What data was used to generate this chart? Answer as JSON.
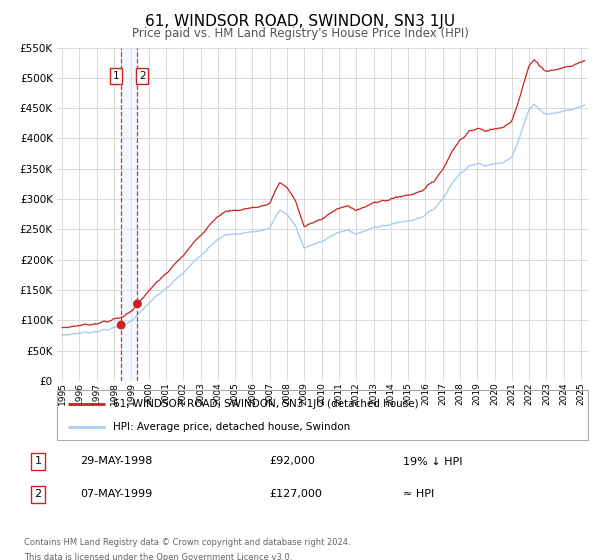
{
  "title": "61, WINDSOR ROAD, SWINDON, SN3 1JU",
  "subtitle": "Price paid vs. HM Land Registry's House Price Index (HPI)",
  "ylim": [
    0,
    550000
  ],
  "yticks": [
    0,
    50000,
    100000,
    150000,
    200000,
    250000,
    300000,
    350000,
    400000,
    450000,
    500000,
    550000
  ],
  "xlim_start": 1994.7,
  "xlim_end": 2025.4,
  "sale1_year": 1998.41,
  "sale1_price": 92000,
  "sale2_year": 1999.35,
  "sale2_price": 127000,
  "line_color_red": "#cc2222",
  "line_color_blue": "#aaccee",
  "shading_color": "#ddeeff",
  "dashed_color": "#cc2222",
  "legend_label_red": "61, WINDSOR ROAD, SWINDON, SN3 1JU (detached house)",
  "legend_label_blue": "HPI: Average price, detached house, Swindon",
  "table_row1_num": "1",
  "table_row1_date": "29-MAY-1998",
  "table_row1_price": "£92,000",
  "table_row1_hpi": "19% ↓ HPI",
  "table_row2_num": "2",
  "table_row2_date": "07-MAY-1999",
  "table_row2_price": "£127,000",
  "table_row2_hpi": "≈ HPI",
  "footnote_line1": "Contains HM Land Registry data © Crown copyright and database right 2024.",
  "footnote_line2": "This data is licensed under the Open Government Licence v3.0.",
  "background_color": "#ffffff",
  "grid_color": "#cccccc",
  "hpi_key_years": [
    1995.0,
    1995.5,
    1996.0,
    1996.5,
    1997.0,
    1997.5,
    1998.0,
    1998.5,
    1999.0,
    1999.5,
    2000.0,
    2000.5,
    2001.0,
    2001.5,
    2002.0,
    2002.5,
    2003.0,
    2003.5,
    2004.0,
    2004.5,
    2005.0,
    2005.5,
    2006.0,
    2006.5,
    2007.0,
    2007.3,
    2007.6,
    2008.0,
    2008.5,
    2009.0,
    2009.5,
    2010.0,
    2010.5,
    2011.0,
    2011.5,
    2012.0,
    2012.5,
    2013.0,
    2013.5,
    2014.0,
    2014.5,
    2015.0,
    2015.5,
    2016.0,
    2016.5,
    2017.0,
    2017.5,
    2018.0,
    2018.5,
    2019.0,
    2019.5,
    2020.0,
    2020.5,
    2021.0,
    2021.3,
    2021.6,
    2022.0,
    2022.3,
    2022.6,
    2023.0,
    2023.5,
    2024.0,
    2024.5,
    2025.2
  ],
  "hpi_key_prices": [
    75000,
    77000,
    79000,
    80000,
    82000,
    84000,
    87000,
    91000,
    100000,
    112000,
    128000,
    140000,
    152000,
    165000,
    178000,
    193000,
    207000,
    222000,
    235000,
    240000,
    242000,
    244000,
    246000,
    248000,
    252000,
    270000,
    282000,
    275000,
    255000,
    218000,
    225000,
    230000,
    238000,
    245000,
    248000,
    244000,
    247000,
    252000,
    256000,
    258000,
    262000,
    264000,
    268000,
    273000,
    285000,
    300000,
    325000,
    342000,
    355000,
    358000,
    355000,
    358000,
    362000,
    370000,
    390000,
    415000,
    448000,
    458000,
    448000,
    440000,
    442000,
    445000,
    448000,
    455000
  ]
}
